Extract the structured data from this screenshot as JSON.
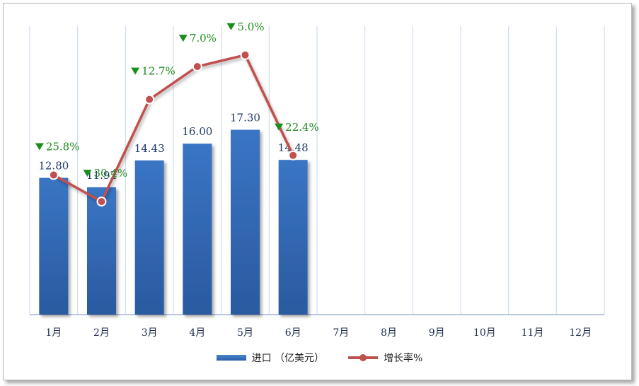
{
  "chart_data": {
    "type": "bar",
    "categories": [
      "1月",
      "2月",
      "3月",
      "4月",
      "5月",
      "6月",
      "7月",
      "8月",
      "9月",
      "10月",
      "11月",
      "12月"
    ],
    "series": [
      {
        "name": "进口（亿美元）",
        "type": "bar",
        "values": [
          12.8,
          11.92,
          14.43,
          16.0,
          17.3,
          14.48,
          null,
          null,
          null,
          null,
          null,
          null
        ],
        "labels": [
          "12.80",
          "11.92",
          "14.43",
          "16.00",
          "17.30",
          "14.48"
        ]
      },
      {
        "name": "增长率%",
        "type": "line",
        "values": [
          -25.8,
          -30.4,
          -12.7,
          -7.0,
          -5.0,
          -22.4,
          null,
          null,
          null,
          null,
          null,
          null
        ],
        "labels": [
          "25.8%",
          "30.4%",
          "12.7%",
          "7.0%",
          "5.0%",
          "22.4%"
        ]
      }
    ],
    "ylim_bar": [
      0,
      27
    ],
    "ylim_line": [
      -50,
      0
    ],
    "title": "",
    "xlabel": "",
    "ylabel": "",
    "grid": "vertical",
    "legend_position": "bottom",
    "colors": {
      "bar": "#3a75c4",
      "bar_dark": "#2a5aa0",
      "line": "#c0504d",
      "label_green": "#1f8a1f",
      "down_marker": "#1a8f1a",
      "grid": "#c8d7ea"
    }
  },
  "legend": {
    "bar_label": "进口 （亿美元）",
    "line_label": "增长率%"
  }
}
